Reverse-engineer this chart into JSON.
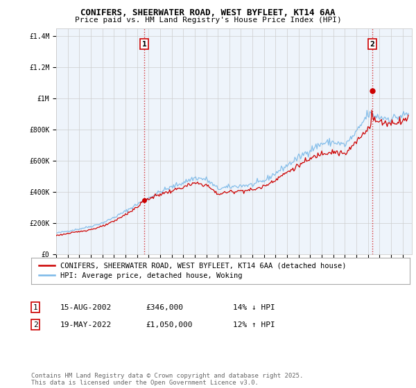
{
  "title": "CONIFERS, SHEERWATER ROAD, WEST BYFLEET, KT14 6AA",
  "subtitle": "Price paid vs. HM Land Registry's House Price Index (HPI)",
  "ylabel_ticks": [
    "£0",
    "£200K",
    "£400K",
    "£600K",
    "£800K",
    "£1M",
    "£1.2M",
    "£1.4M"
  ],
  "ytick_values": [
    0,
    200000,
    400000,
    600000,
    800000,
    1000000,
    1200000,
    1400000
  ],
  "ylim": [
    0,
    1450000
  ],
  "xlim_start": 1995.0,
  "xlim_end": 2025.8,
  "sale1_x": 2002.62,
  "sale1_y": 346000,
  "sale1_label": "1",
  "sale2_x": 2022.38,
  "sale2_y": 1050000,
  "sale2_label": "2",
  "house_color": "#cc0000",
  "hpi_color": "#7ab8e8",
  "vline_color": "#cc0000",
  "grid_color": "#cccccc",
  "plot_bg_color": "#eef4fb",
  "background_color": "#ffffff",
  "legend_label_house": "CONIFERS, SHEERWATER ROAD, WEST BYFLEET, KT14 6AA (detached house)",
  "legend_label_hpi": "HPI: Average price, detached house, Woking",
  "table_rows": [
    {
      "num": "1",
      "date": "15-AUG-2002",
      "price": "£346,000",
      "hpi": "14% ↓ HPI"
    },
    {
      "num": "2",
      "date": "19-MAY-2022",
      "price": "£1,050,000",
      "hpi": "12% ↑ HPI"
    }
  ],
  "footer": "Contains HM Land Registry data © Crown copyright and database right 2025.\nThis data is licensed under the Open Government Licence v3.0.",
  "title_fontsize": 9,
  "subtitle_fontsize": 8,
  "tick_fontsize": 7,
  "legend_fontsize": 7.5,
  "table_fontsize": 8,
  "footer_fontsize": 6.5
}
